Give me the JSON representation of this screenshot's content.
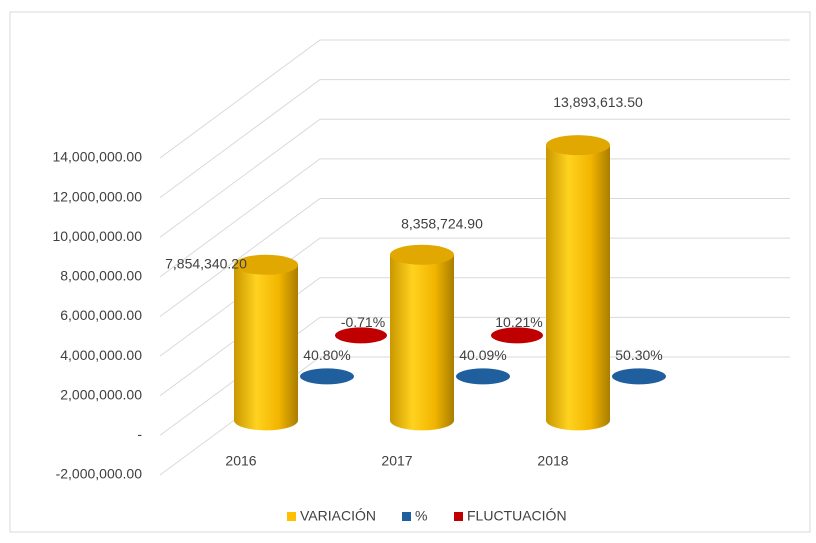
{
  "chart_data": {
    "type": "bar3d",
    "categories": [
      "2016",
      "2017",
      "2018"
    ],
    "series": [
      {
        "name": "VARIACIÓN",
        "color": "#ffc000",
        "values": [
          7854340.2,
          8358724.9,
          13893613.5
        ],
        "value_labels": [
          "7,854,340.20",
          "8,358,724.90",
          "13,893,613.50"
        ]
      },
      {
        "name": "%",
        "color": "#1f5f9e",
        "values": [
          40.8,
          40.09,
          50.3
        ],
        "value_labels": [
          "40.80%",
          "40.09%",
          "50.30%"
        ]
      },
      {
        "name": "FLUCTUACIÓN",
        "color": "#c00000",
        "values": [
          -0.71,
          10.21,
          null
        ],
        "value_labels": [
          "-0.71%",
          "10.21%",
          null
        ]
      }
    ],
    "ylim": [
      -2000000,
      14000000
    ],
    "yticks": [
      {
        "value": -2000000,
        "label": "-2,000,000.00"
      },
      {
        "value": 0,
        "label": "-"
      },
      {
        "value": 2000000,
        "label": "2,000,000.00"
      },
      {
        "value": 4000000,
        "label": "4,000,000.00"
      },
      {
        "value": 6000000,
        "label": "6,000,000.00"
      },
      {
        "value": 8000000,
        "label": "8,000,000.00"
      },
      {
        "value": 10000000,
        "label": "10,000,000.00"
      },
      {
        "value": 12000000,
        "label": "12,000,000.00"
      },
      {
        "value": 14000000,
        "label": "14,000,000.00"
      }
    ],
    "grid": true,
    "legend": "bottom"
  }
}
